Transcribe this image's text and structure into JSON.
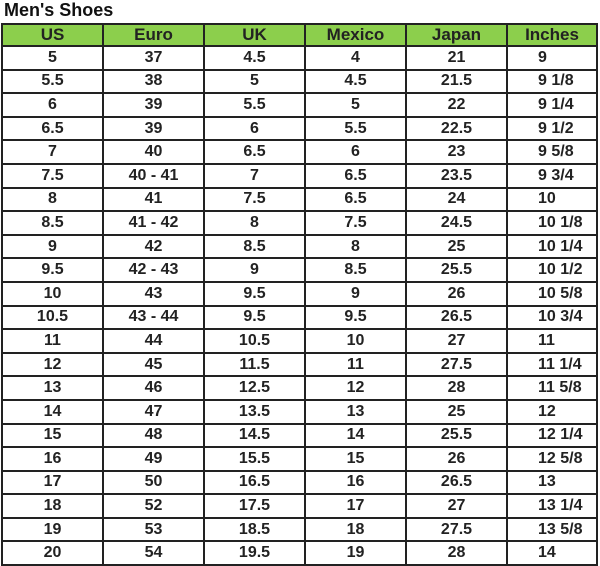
{
  "title": "Men's Shoes",
  "headers": [
    "US",
    "Euro",
    "UK",
    "Mexico",
    "Japan",
    "Inches"
  ],
  "colors": {
    "header_bg": "#8ccf4c",
    "border": "#222222"
  },
  "rows": [
    [
      "5",
      "37",
      "4.5",
      "4",
      "21",
      "9"
    ],
    [
      "5.5",
      "38",
      "5",
      "4.5",
      "21.5",
      "9 1/8"
    ],
    [
      "6",
      "39",
      "5.5",
      "5",
      "22",
      "9 1/4"
    ],
    [
      "6.5",
      "39",
      "6",
      "5.5",
      "22.5",
      "9 1/2"
    ],
    [
      "7",
      "40",
      "6.5",
      "6",
      "23",
      "9 5/8"
    ],
    [
      "7.5",
      "40 - 41",
      "7",
      "6.5",
      "23.5",
      "9 3/4"
    ],
    [
      "8",
      "41",
      "7.5",
      "6.5",
      "24",
      "10"
    ],
    [
      "8.5",
      "41 - 42",
      "8",
      "7.5",
      "24.5",
      "10 1/8"
    ],
    [
      "9",
      "42",
      "8.5",
      "8",
      "25",
      "10 1/4"
    ],
    [
      "9.5",
      "42 - 43",
      "9",
      "8.5",
      "25.5",
      "10 1/2"
    ],
    [
      "10",
      "43",
      "9.5",
      "9",
      "26",
      "10 5/8"
    ],
    [
      "10.5",
      "43 - 44",
      "9.5",
      "9.5",
      "26.5",
      "10 3/4"
    ],
    [
      "11",
      "44",
      "10.5",
      "10",
      "27",
      "11"
    ],
    [
      "12",
      "45",
      "11.5",
      "11",
      "27.5",
      "11 1/4"
    ],
    [
      "13",
      "46",
      "12.5",
      "12",
      "28",
      "11 5/8"
    ],
    [
      "14",
      "47",
      "13.5",
      "13",
      "25",
      "12"
    ],
    [
      "15",
      "48",
      "14.5",
      "14",
      "25.5",
      "12 1/4"
    ],
    [
      "16",
      "49",
      "15.5",
      "15",
      "26",
      "12 5/8"
    ],
    [
      "17",
      "50",
      "16.5",
      "16",
      "26.5",
      "13"
    ],
    [
      "18",
      "52",
      "17.5",
      "17",
      "27",
      "13 1/4"
    ],
    [
      "19",
      "53",
      "18.5",
      "18",
      "27.5",
      "13 5/8"
    ],
    [
      "20",
      "54",
      "19.5",
      "19",
      "28",
      "14"
    ]
  ]
}
